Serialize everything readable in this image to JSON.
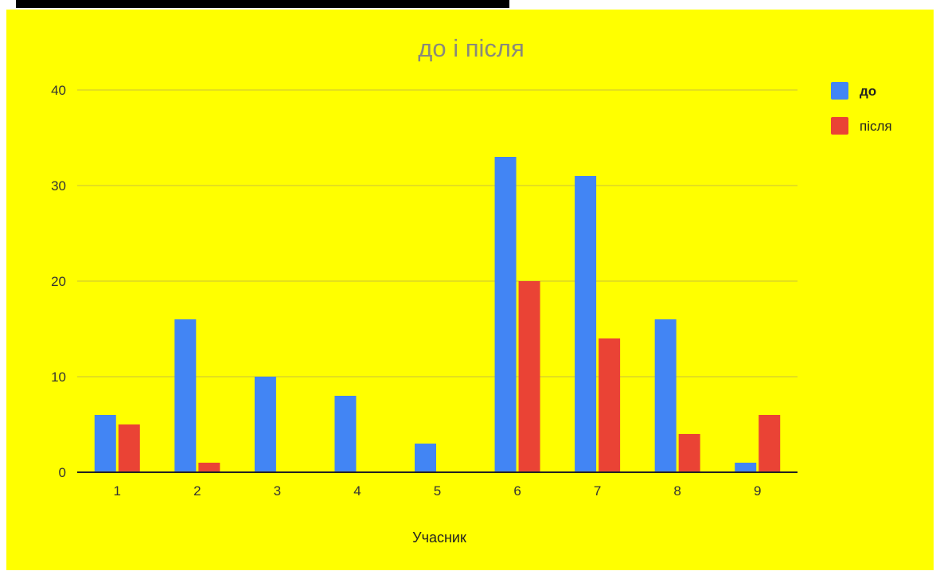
{
  "colors": {
    "background": "#ffff00",
    "series_do": "#4285f4",
    "series_pislia": "#ea4335",
    "gridline": "#c9c13a",
    "axis": "#222222"
  },
  "chart_data": {
    "type": "bar",
    "title": "до і після",
    "xlabel": "Учасник",
    "ylabel": "",
    "categories": [
      "1",
      "2",
      "3",
      "4",
      "5",
      "6",
      "7",
      "8",
      "9"
    ],
    "series": [
      {
        "name": "до",
        "values": [
          6,
          16,
          10,
          8,
          3,
          33,
          31,
          16,
          1
        ]
      },
      {
        "name": "після",
        "values": [
          5,
          1,
          0,
          0,
          0,
          20,
          14,
          4,
          6
        ]
      }
    ],
    "ylim": [
      0,
      40
    ],
    "yticks": [
      "0",
      "10",
      "20",
      "30",
      "40"
    ],
    "grid": true,
    "legend_position": "right"
  }
}
